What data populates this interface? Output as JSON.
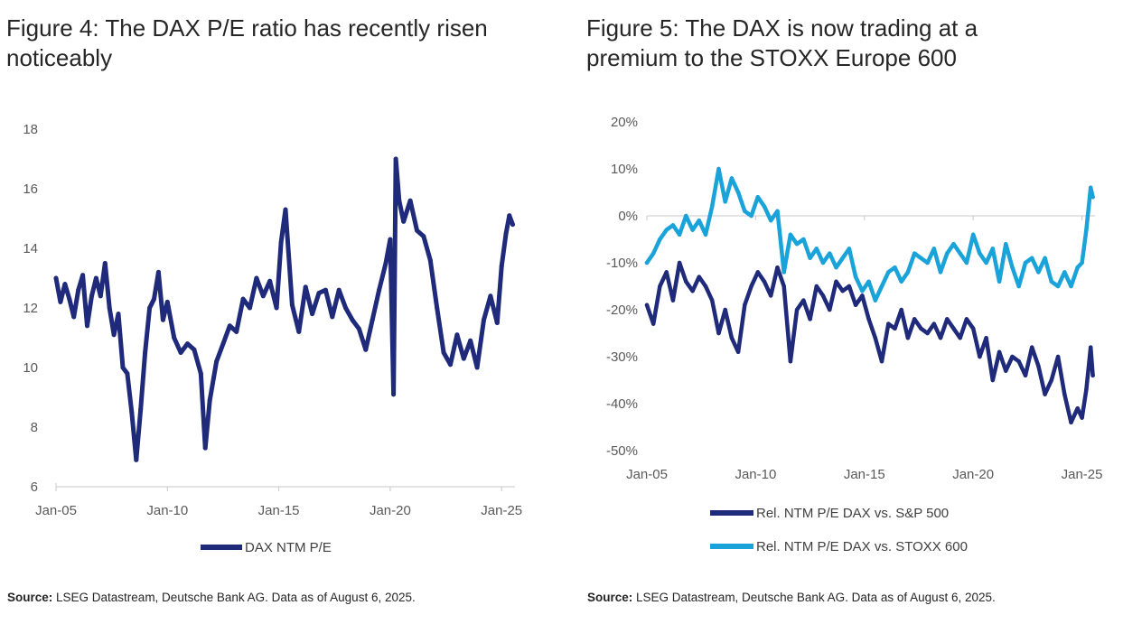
{
  "figures": [
    {
      "title": "Figure 4: The DAX P/E ratio has recently risen noticeably",
      "source_label": "Source:",
      "source_text": " LSEG Datastream, Deutsche Bank AG. Data as of August 6, 2025."
    },
    {
      "title": "Figure 5: The DAX is now trading at a premium to the STOXX Europe 600",
      "source_label": "Source:",
      "source_text": " LSEG Datastream, Deutsche Bank AG. Data as of August 6, 2025."
    }
  ],
  "chart_data": [
    {
      "type": "line",
      "title": "Figure 4: The DAX P/E ratio has recently risen noticeably",
      "xlim": [
        2005,
        2025.6
      ],
      "ylim": [
        6,
        18
      ],
      "xticks": [
        2005,
        2010,
        2015,
        2020,
        2025
      ],
      "xtick_labels": [
        "Jan-05",
        "Jan-10",
        "Jan-15",
        "Jan-20",
        "Jan-25"
      ],
      "yticks": [
        6,
        8,
        10,
        12,
        14,
        16,
        18
      ],
      "ytick_labels": [
        "6",
        "8",
        "10",
        "12",
        "14",
        "16",
        "18"
      ],
      "legend_placement": "bottom-center",
      "series": [
        {
          "name": "DAX NTM P/E",
          "color": "#1f2a7a",
          "x": [
            2005.0,
            2005.2,
            2005.4,
            2005.6,
            2005.8,
            2006.0,
            2006.2,
            2006.4,
            2006.6,
            2006.8,
            2007.0,
            2007.2,
            2007.4,
            2007.6,
            2007.8,
            2008.0,
            2008.2,
            2008.4,
            2008.6,
            2008.8,
            2009.0,
            2009.2,
            2009.4,
            2009.6,
            2009.8,
            2010.0,
            2010.3,
            2010.6,
            2010.9,
            2011.2,
            2011.5,
            2011.7,
            2011.9,
            2012.2,
            2012.5,
            2012.8,
            2013.1,
            2013.4,
            2013.7,
            2014.0,
            2014.3,
            2014.6,
            2014.9,
            2015.1,
            2015.3,
            2015.6,
            2015.9,
            2016.2,
            2016.5,
            2016.8,
            2017.1,
            2017.4,
            2017.7,
            2018.0,
            2018.3,
            2018.6,
            2018.9,
            2019.2,
            2019.5,
            2019.8,
            2020.0,
            2020.15,
            2020.25,
            2020.4,
            2020.6,
            2020.9,
            2021.2,
            2021.5,
            2021.8,
            2022.1,
            2022.4,
            2022.7,
            2023.0,
            2023.3,
            2023.6,
            2023.9,
            2024.2,
            2024.5,
            2024.8,
            2025.0,
            2025.2,
            2025.35,
            2025.5
          ],
          "values": [
            13.0,
            12.2,
            12.8,
            12.3,
            11.7,
            12.6,
            13.1,
            11.4,
            12.4,
            13.0,
            12.4,
            13.5,
            12.0,
            11.1,
            11.8,
            10.0,
            9.8,
            8.5,
            6.9,
            8.6,
            10.5,
            12.0,
            12.3,
            13.2,
            11.6,
            12.2,
            11.0,
            10.5,
            10.8,
            10.6,
            9.8,
            7.3,
            8.9,
            10.2,
            10.8,
            11.4,
            11.2,
            12.3,
            12.0,
            13.0,
            12.4,
            12.9,
            12.0,
            14.2,
            15.3,
            12.1,
            11.2,
            12.7,
            11.8,
            12.5,
            12.6,
            11.7,
            12.6,
            12.0,
            11.6,
            11.3,
            10.6,
            11.6,
            12.6,
            13.5,
            14.3,
            9.1,
            17.0,
            15.6,
            14.9,
            15.6,
            14.6,
            14.4,
            13.6,
            12.0,
            10.5,
            10.1,
            11.1,
            10.3,
            10.9,
            10.0,
            11.6,
            12.4,
            11.5,
            13.4,
            14.5,
            15.1,
            14.8
          ]
        }
      ]
    },
    {
      "type": "line",
      "title": "Figure 5: The DAX is now trading at a premium to the STOXX Europe 600",
      "xlim": [
        2005,
        2025.6
      ],
      "ylim": [
        -50,
        20
      ],
      "xticks": [
        2005,
        2010,
        2015,
        2020,
        2025
      ],
      "xtick_labels": [
        "Jan-05",
        "Jan-10",
        "Jan-15",
        "Jan-20",
        "Jan-25"
      ],
      "yticks": [
        -50,
        -40,
        -30,
        -20,
        -10,
        0,
        10,
        20
      ],
      "ytick_labels": [
        "-50%",
        "-40%",
        "-30%",
        "-20%",
        "-10%",
        "0%",
        "10%",
        "20%"
      ],
      "legend_placement": "bottom-center",
      "series": [
        {
          "name": "Rel. NTM P/E DAX vs. S&P 500",
          "color": "#1f2a7a",
          "x": [
            2005.0,
            2005.3,
            2005.6,
            2005.9,
            2006.2,
            2006.5,
            2006.8,
            2007.1,
            2007.4,
            2007.7,
            2008.0,
            2008.3,
            2008.6,
            2008.9,
            2009.2,
            2009.5,
            2009.8,
            2010.1,
            2010.4,
            2010.7,
            2011.0,
            2011.3,
            2011.6,
            2011.9,
            2012.2,
            2012.5,
            2012.8,
            2013.1,
            2013.4,
            2013.7,
            2014.0,
            2014.3,
            2014.6,
            2014.9,
            2015.2,
            2015.5,
            2015.8,
            2016.1,
            2016.4,
            2016.7,
            2017.0,
            2017.3,
            2017.6,
            2017.9,
            2018.2,
            2018.5,
            2018.8,
            2019.1,
            2019.4,
            2019.7,
            2020.0,
            2020.3,
            2020.6,
            2020.9,
            2021.2,
            2021.5,
            2021.8,
            2022.1,
            2022.4,
            2022.7,
            2023.0,
            2023.3,
            2023.6,
            2023.9,
            2024.2,
            2024.5,
            2024.8,
            2025.0,
            2025.2,
            2025.4,
            2025.5
          ],
          "values": [
            -19,
            -23,
            -15,
            -12,
            -18,
            -10,
            -14,
            -16,
            -13,
            -15,
            -18,
            -25,
            -20,
            -26,
            -29,
            -19,
            -15,
            -12,
            -14,
            -17,
            -11,
            -15,
            -31,
            -20,
            -18,
            -22,
            -15,
            -17,
            -20,
            -14,
            -16,
            -15,
            -19,
            -17,
            -22,
            -26,
            -31,
            -23,
            -24,
            -20,
            -26,
            -22,
            -24,
            -25,
            -23,
            -26,
            -22,
            -24,
            -26,
            -22,
            -24,
            -30,
            -26,
            -35,
            -29,
            -33,
            -30,
            -31,
            -34,
            -28,
            -32,
            -38,
            -35,
            -30,
            -38,
            -44,
            -41,
            -43,
            -37,
            -28,
            -34
          ]
        },
        {
          "name": "Rel. NTM P/E DAX vs. STOXX 600",
          "color": "#1aa3d9",
          "x": [
            2005.0,
            2005.3,
            2005.6,
            2005.9,
            2006.2,
            2006.5,
            2006.8,
            2007.1,
            2007.4,
            2007.7,
            2008.0,
            2008.3,
            2008.6,
            2008.9,
            2009.2,
            2009.5,
            2009.8,
            2010.1,
            2010.4,
            2010.7,
            2011.0,
            2011.3,
            2011.6,
            2011.9,
            2012.2,
            2012.5,
            2012.8,
            2013.1,
            2013.4,
            2013.7,
            2014.0,
            2014.3,
            2014.6,
            2014.9,
            2015.2,
            2015.5,
            2015.8,
            2016.1,
            2016.4,
            2016.7,
            2017.0,
            2017.3,
            2017.6,
            2017.9,
            2018.2,
            2018.5,
            2018.8,
            2019.1,
            2019.4,
            2019.7,
            2020.0,
            2020.3,
            2020.6,
            2020.9,
            2021.2,
            2021.5,
            2021.8,
            2022.1,
            2022.4,
            2022.7,
            2023.0,
            2023.3,
            2023.6,
            2023.9,
            2024.2,
            2024.5,
            2024.8,
            2025.0,
            2025.2,
            2025.4,
            2025.5
          ],
          "values": [
            -10,
            -8,
            -5,
            -3,
            -2,
            -4,
            0,
            -3,
            -1,
            -4,
            2,
            10,
            3,
            8,
            5,
            1,
            0,
            4,
            2,
            -1,
            1,
            -12,
            -4,
            -6,
            -5,
            -9,
            -7,
            -10,
            -8,
            -11,
            -9,
            -7,
            -13,
            -16,
            -14,
            -18,
            -15,
            -12,
            -11,
            -14,
            -12,
            -8,
            -9,
            -10,
            -7,
            -12,
            -8,
            -6,
            -8,
            -10,
            -4,
            -8,
            -10,
            -7,
            -14,
            -6,
            -11,
            -15,
            -10,
            -9,
            -12,
            -9,
            -14,
            -15,
            -12,
            -15,
            -11,
            -10,
            -3,
            6,
            4
          ]
        }
      ]
    }
  ]
}
